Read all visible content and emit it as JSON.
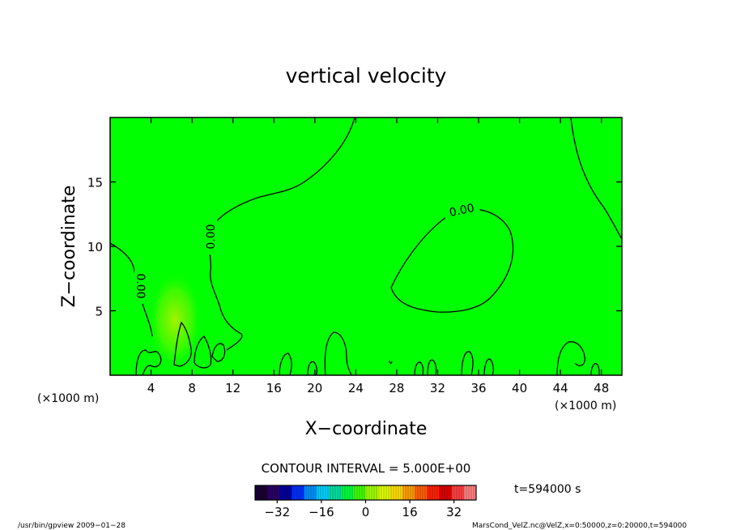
{
  "chart_data": {
    "type": "heatmap",
    "title": "vertical velocity",
    "xlabel": "X−coordinate",
    "ylabel": "Z−coordinate",
    "x_unit_left": "(×1000 m)",
    "x_unit_right": "(×1000 m)",
    "xlim": [
      0,
      50
    ],
    "ylim": [
      0,
      20
    ],
    "x_ticks": [
      4,
      8,
      12,
      16,
      20,
      24,
      28,
      32,
      36,
      40,
      44,
      48
    ],
    "x_tick_labels": [
      "4",
      "8",
      "12",
      "16",
      "20",
      "24",
      "28",
      "32",
      "36",
      "40",
      "44",
      "48"
    ],
    "y_ticks": [
      5,
      10,
      15
    ],
    "y_tick_labels": [
      "5",
      "10",
      "15"
    ],
    "contour_interval_text": "CONTOUR INTERVAL = 5.000E+00",
    "contour_label": "0.00",
    "background_color": "#00ff00",
    "colorbar": {
      "range": [
        -40,
        40
      ],
      "ticks": [
        -32,
        -16,
        0,
        16,
        32
      ],
      "tick_labels": [
        "−32",
        "−16",
        "0",
        "16",
        "32"
      ],
      "colors": [
        "#1a0033",
        "#2a0066",
        "#0000a0",
        "#0030ff",
        "#0090ff",
        "#00d0ff",
        "#00e0a0",
        "#00ff40",
        "#40ff00",
        "#a0ff00",
        "#e0ff00",
        "#ffe000",
        "#ffa000",
        "#ff6000",
        "#ff2000",
        "#e00000",
        "#ff4040",
        "#ff8080"
      ]
    },
    "time_label": "t=594000 s",
    "footer_left": "/usr/bin/gpview   2009−01−28",
    "footer_right": "MarsCond_VelZ.nc@VelZ,x=0:50000,z=0:20000,t=594000"
  }
}
